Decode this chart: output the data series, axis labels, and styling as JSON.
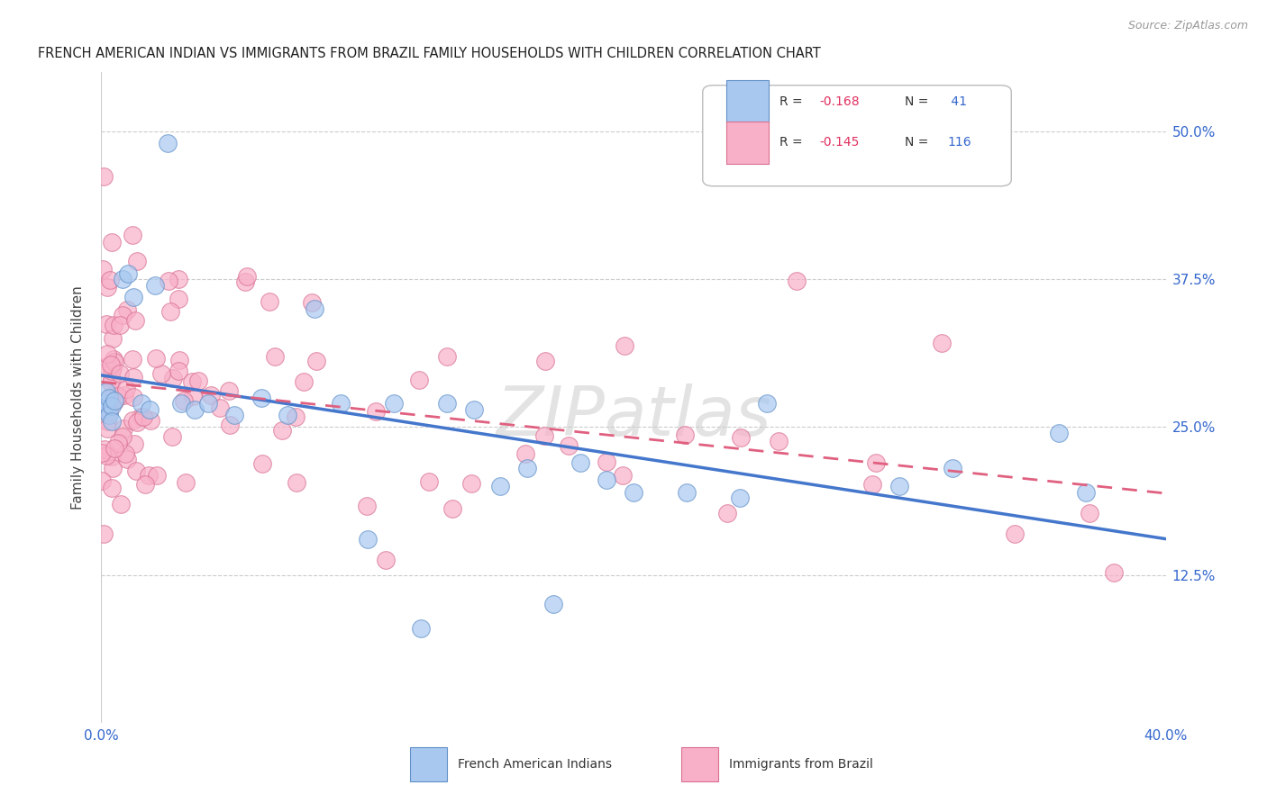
{
  "title": "FRENCH AMERICAN INDIAN VS IMMIGRANTS FROM BRAZIL FAMILY HOUSEHOLDS WITH CHILDREN CORRELATION CHART",
  "source": "Source: ZipAtlas.com",
  "ylabel": "Family Households with Children",
  "yticks": [
    "12.5%",
    "25.0%",
    "37.5%",
    "50.0%"
  ],
  "ytick_vals": [
    0.125,
    0.25,
    0.375,
    0.5
  ],
  "xlim": [
    0.0,
    0.4
  ],
  "ylim": [
    0.0,
    0.55
  ],
  "watermark": "ZIPatlas",
  "series1_color": "#a8c8f0",
  "series1_edge": "#6090c8",
  "series2_color": "#f8b0c8",
  "series2_edge": "#d87090",
  "trendline1_color": "#4477cc",
  "trendline2_color": "#e06080",
  "trendline2_dash": [
    6,
    4
  ],
  "r1": "-0.168",
  "n1": "41",
  "r2": "-0.145",
  "n2": "116",
  "r_color": "#e03060",
  "n_color": "#3366cc"
}
